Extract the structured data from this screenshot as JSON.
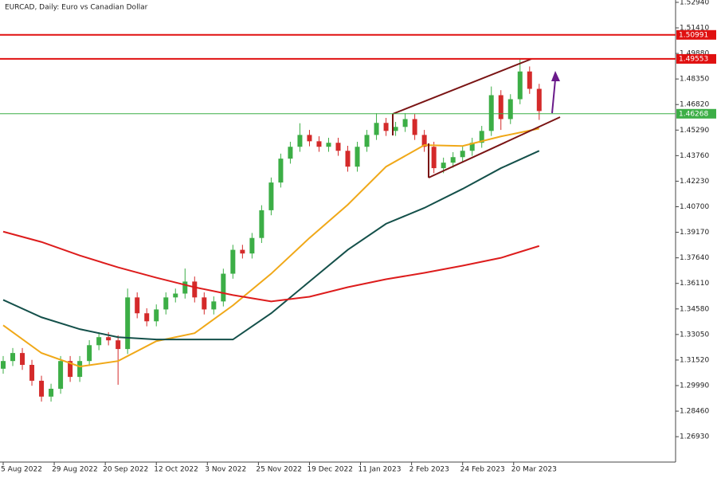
{
  "chart_data": {
    "type": "candlestick",
    "title": "EURCAD, Daily:  Euro vs Canadian Dollar",
    "x": [
      0,
      3,
      6,
      9,
      12,
      15,
      18,
      21,
      24,
      27,
      30,
      33,
      36,
      39,
      42,
      45,
      48,
      51,
      54,
      57,
      60,
      63,
      66,
      69,
      72,
      75,
      78,
      81,
      84,
      87,
      90,
      93,
      96,
      99,
      102,
      105,
      108,
      111,
      114,
      117,
      120,
      123,
      126,
      129,
      132,
      135,
      138,
      141,
      144,
      147,
      150,
      153,
      156,
      159,
      162,
      165,
      168
    ],
    "open": [
      1.31,
      1.3146,
      1.3194,
      1.3123,
      1.3028,
      1.2933,
      1.298,
      1.3146,
      1.3051,
      1.3146,
      1.3241,
      1.3289,
      1.327,
      1.3218,
      1.3527,
      1.3432,
      1.3384,
      1.3455,
      1.3527,
      1.355,
      1.3622,
      1.3527,
      1.3455,
      1.3503,
      1.3669,
      1.3812,
      1.379,
      1.3883,
      1.4049,
      1.4215,
      1.4358,
      1.4429,
      1.45,
      1.4462,
      1.4429,
      1.4453,
      1.4405,
      1.431,
      1.4429,
      1.45,
      1.4572,
      1.4524,
      1.4548,
      1.4595,
      1.45,
      1.4429,
      1.4301,
      1.4334,
      1.4367,
      1.4405,
      1.4453,
      1.4524,
      1.4738,
      1.4595,
      1.4714,
      1.488,
      1.4776
    ],
    "high": [
      1.3176,
      1.3224,
      1.3224,
      1.3153,
      1.3058,
      1.301,
      1.3176,
      1.3176,
      1.3176,
      1.3271,
      1.3319,
      1.3319,
      1.33,
      1.358,
      1.3557,
      1.3462,
      1.3485,
      1.3557,
      1.358,
      1.37,
      1.3652,
      1.3557,
      1.3533,
      1.3699,
      1.3842,
      1.3842,
      1.3913,
      1.4079,
      1.4245,
      1.4388,
      1.4459,
      1.457,
      1.453,
      1.4492,
      1.4483,
      1.4483,
      1.4435,
      1.4459,
      1.453,
      1.463,
      1.4602,
      1.4578,
      1.463,
      1.4625,
      1.453,
      1.4459,
      1.4364,
      1.4397,
      1.4435,
      1.4483,
      1.4554,
      1.479,
      1.4768,
      1.4744,
      1.4955,
      1.491,
      1.4806
    ],
    "low": [
      1.307,
      1.3116,
      1.3093,
      1.2998,
      1.2903,
      1.2903,
      1.295,
      1.3021,
      1.3021,
      1.3116,
      1.3211,
      1.324,
      1.3004,
      1.3188,
      1.3402,
      1.3354,
      1.3354,
      1.3425,
      1.3497,
      1.352,
      1.3497,
      1.3425,
      1.3425,
      1.3473,
      1.3639,
      1.376,
      1.376,
      1.3853,
      1.4019,
      1.4185,
      1.4328,
      1.4399,
      1.4432,
      1.4399,
      1.4399,
      1.4375,
      1.428,
      1.428,
      1.4399,
      1.447,
      1.4494,
      1.4494,
      1.4518,
      1.447,
      1.4399,
      1.4271,
      1.4271,
      1.4304,
      1.4337,
      1.4375,
      1.4423,
      1.4494,
      1.453,
      1.4565,
      1.4684,
      1.4746,
      1.459
    ],
    "close": [
      1.3146,
      1.3194,
      1.3123,
      1.3028,
      1.2933,
      1.298,
      1.3146,
      1.3051,
      1.3146,
      1.3241,
      1.3289,
      1.327,
      1.3218,
      1.3527,
      1.3432,
      1.3384,
      1.3455,
      1.3527,
      1.355,
      1.3622,
      1.3527,
      1.3455,
      1.3503,
      1.3669,
      1.3812,
      1.379,
      1.3883,
      1.4049,
      1.4215,
      1.4358,
      1.4429,
      1.45,
      1.4462,
      1.4429,
      1.4453,
      1.4405,
      1.431,
      1.4429,
      1.45,
      1.4572,
      1.4524,
      1.4548,
      1.4595,
      1.45,
      1.4429,
      1.4301,
      1.4334,
      1.4367,
      1.4405,
      1.4453,
      1.4524,
      1.4738,
      1.4595,
      1.4714,
      1.488,
      1.4776,
      1.4643
    ],
    "up_color": "#3cae46",
    "down_color": "#d42a2a",
    "series": [
      {
        "color": "#f0a818",
        "x": [
          0,
          12,
          24,
          36,
          48,
          60,
          72,
          84,
          96,
          108,
          120,
          132,
          144,
          156,
          168
        ],
        "values": [
          1.336,
          1.3194,
          1.3113,
          1.3146,
          1.3265,
          1.3313,
          1.3479,
          1.3669,
          1.3883,
          1.4082,
          1.431,
          1.4439,
          1.4434,
          1.4491,
          1.4538
        ]
      },
      {
        "color": "#14504a",
        "x": [
          0,
          12,
          24,
          36,
          48,
          60,
          72,
          84,
          96,
          108,
          120,
          132,
          144,
          156,
          168
        ],
        "values": [
          1.3512,
          1.3408,
          1.3337,
          1.3289,
          1.3275,
          1.3275,
          1.3275,
          1.3432,
          1.3622,
          1.3812,
          1.3968,
          1.4063,
          1.4177,
          1.4301,
          1.4405
        ]
      },
      {
        "color": "#dd1c1c",
        "x": [
          0,
          12,
          24,
          36,
          48,
          60,
          72,
          84,
          96,
          108,
          120,
          132,
          144,
          156,
          168
        ],
        "values": [
          1.3921,
          1.3859,
          1.3778,
          1.3707,
          1.3645,
          1.3588,
          1.3541,
          1.3503,
          1.3531,
          1.3588,
          1.3636,
          1.3674,
          1.3717,
          1.3764,
          1.3835
        ]
      }
    ],
    "levels": [
      {
        "value": 1.50991,
        "color": "#e01010"
      },
      {
        "value": 1.49553,
        "color": "#e01010"
      },
      {
        "value": 1.46268,
        "color": "#3cae46"
      }
    ],
    "xlim": [
      -1,
      210.75
    ],
    "ylim": [
      1.2541,
      1.5308
    ],
    "xticks": [
      {
        "value": 0,
        "label": "5 Aug 2022"
      },
      {
        "value": 16,
        "label": "29 Aug 2022"
      },
      {
        "value": 32,
        "label": "20 Sep 2022"
      },
      {
        "value": 48,
        "label": "12 Oct 2022"
      },
      {
        "value": 64,
        "label": "3 Nov 2022"
      },
      {
        "value": 80,
        "label": "25 Nov 2022"
      },
      {
        "value": 96,
        "label": "19 Dec 2022"
      },
      {
        "value": 112,
        "label": "11 Jan 2023"
      },
      {
        "value": 128,
        "label": "2 Feb 2023"
      },
      {
        "value": 144,
        "label": "24 Feb 2023"
      },
      {
        "value": 160,
        "label": "20 Mar 2023"
      }
    ],
    "yticks": [
      {
        "value": 1.5294,
        "label": "1.52940"
      },
      {
        "value": 1.5141,
        "label": "1.51410"
      },
      {
        "value": 1.4988,
        "label": "1.49880"
      },
      {
        "value": 1.4835,
        "label": "1.48350"
      },
      {
        "value": 1.4682,
        "label": "1.46820"
      },
      {
        "value": 1.4529,
        "label": "1.45290"
      },
      {
        "value": 1.4376,
        "label": "1.43760"
      },
      {
        "value": 1.4223,
        "label": "1.42230"
      },
      {
        "value": 1.407,
        "label": "1.40700"
      },
      {
        "value": 1.3917,
        "label": "1.39170"
      },
      {
        "value": 1.3764,
        "label": "1.37640"
      },
      {
        "value": 1.3611,
        "label": "1.36110"
      },
      {
        "value": 1.3458,
        "label": "1.34580"
      },
      {
        "value": 1.3305,
        "label": "1.33050"
      },
      {
        "value": 1.3152,
        "label": "1.31520"
      },
      {
        "value": 1.2999,
        "label": "1.29990"
      },
      {
        "value": 1.2846,
        "label": "1.28460"
      },
      {
        "value": 1.2693,
        "label": "1.26930"
      }
    ]
  }
}
